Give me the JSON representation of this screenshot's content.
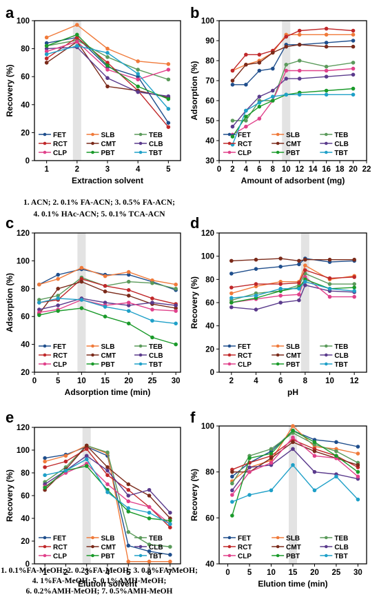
{
  "legend_labels": [
    "FET",
    "SLB",
    "TEB",
    "RCT",
    "CMT",
    "CLB",
    "CLP",
    "PBT",
    "TBT"
  ],
  "series_colors": [
    "#1f4e8c",
    "#f07a3a",
    "#5a9a5a",
    "#c0282a",
    "#7a2a1a",
    "#5a3a8c",
    "#e0408a",
    "#1a9a2a",
    "#1fa0c8"
  ],
  "chart_data": [
    {
      "panel_label": "a",
      "type": "line",
      "xlabel": "Extraction solvent",
      "ylabel": "Recovery (%)",
      "xlim": [
        0.6,
        5.4
      ],
      "ylim": [
        0,
        100
      ],
      "xticks": [
        1,
        2,
        3,
        4,
        5
      ],
      "yticks": [
        0,
        20,
        40,
        60,
        80,
        100
      ],
      "highlight_x": 2,
      "caption": [
        "1. ACN; 2. 0.1% FA-ACN; 3. 0.5% FA-ACN;",
        "4. 0.1% HAc-ACN; 5. 0.1% TCA-ACN"
      ],
      "x": [
        1,
        2,
        3,
        4,
        5
      ],
      "series": [
        {
          "name": "FET",
          "values": [
            84,
            88,
            67,
            60,
            27
          ]
        },
        {
          "name": "SLB",
          "values": [
            88,
            97,
            80,
            71,
            69
          ]
        },
        {
          "name": "TEB",
          "values": [
            82,
            86,
            74,
            65,
            58
          ]
        },
        {
          "name": "RCT",
          "values": [
            73,
            88,
            70,
            50,
            24
          ]
        },
        {
          "name": "CMT",
          "values": [
            70,
            85,
            53,
            50,
            45
          ]
        },
        {
          "name": "CLB",
          "values": [
            80,
            81,
            59,
            49,
            46
          ]
        },
        {
          "name": "CLP",
          "values": [
            78,
            85,
            65,
            58,
            65
          ]
        },
        {
          "name": "PBT",
          "values": [
            82,
            90,
            68,
            53,
            44
          ]
        },
        {
          "name": "TBT",
          "values": [
            76,
            82,
            77,
            62,
            37
          ]
        }
      ]
    },
    {
      "panel_label": "b",
      "type": "line",
      "xlabel": "Amount of adsorbent (mg)",
      "ylabel": "Adsorption (%)",
      "xlim": [
        0,
        22
      ],
      "ylim": [
        30,
        100
      ],
      "xticks": [
        0,
        2,
        4,
        6,
        8,
        10,
        12,
        14,
        16,
        18,
        20,
        22
      ],
      "yticks": [
        30,
        40,
        50,
        60,
        70,
        80,
        90,
        100
      ],
      "highlight_x": 10,
      "x": [
        2,
        4,
        6,
        8,
        10,
        12,
        16,
        20
      ],
      "series": [
        {
          "name": "FET",
          "values": [
            68,
            68,
            75,
            76,
            88,
            88,
            89,
            90
          ]
        },
        {
          "name": "SLB",
          "values": [
            75,
            78,
            80,
            84,
            93,
            93,
            93,
            93
          ]
        },
        {
          "name": "TEB",
          "values": [
            50,
            50,
            60,
            60,
            78,
            80,
            77,
            79
          ]
        },
        {
          "name": "RCT",
          "values": [
            75,
            83,
            83,
            85,
            92,
            95,
            96,
            95
          ]
        },
        {
          "name": "CMT",
          "values": [
            70,
            78,
            79,
            84,
            87,
            88,
            87,
            87
          ]
        },
        {
          "name": "CLB",
          "values": [
            47,
            55,
            62,
            65,
            71,
            71,
            72,
            73
          ]
        },
        {
          "name": "CLP",
          "values": [
            43,
            47,
            51,
            60,
            75,
            75,
            75,
            76
          ]
        },
        {
          "name": "PBT",
          "values": [
            42,
            52,
            57,
            60,
            63,
            64,
            65,
            66
          ]
        },
        {
          "name": "TBT",
          "values": [
            38,
            55,
            59,
            62,
            63,
            63,
            63,
            63
          ]
        }
      ]
    },
    {
      "panel_label": "c",
      "type": "line",
      "xlabel": "Adsorption time (min)",
      "ylabel": "Adsorption (%)",
      "xlim": [
        0,
        31
      ],
      "ylim": [
        20,
        120
      ],
      "xticks": [
        0,
        5,
        10,
        15,
        20,
        25,
        30
      ],
      "yticks": [
        20,
        40,
        60,
        80,
        100,
        120
      ],
      "highlight_x": 10,
      "x": [
        1,
        5,
        10,
        15,
        20,
        25,
        30
      ],
      "series": [
        {
          "name": "FET",
          "values": [
            83,
            90,
            94,
            90,
            90,
            85,
            79
          ]
        },
        {
          "name": "SLB",
          "values": [
            83,
            87,
            95,
            89,
            92,
            86,
            83
          ]
        },
        {
          "name": "TEB",
          "values": [
            72,
            75,
            88,
            82,
            85,
            84,
            80
          ]
        },
        {
          "name": "RCT",
          "values": [
            70,
            72,
            87,
            82,
            79,
            73,
            69
          ]
        },
        {
          "name": "CMT",
          "values": [
            62,
            80,
            85,
            78,
            75,
            69,
            66
          ]
        },
        {
          "name": "CLB",
          "values": [
            65,
            68,
            73,
            70,
            68,
            70,
            68
          ]
        },
        {
          "name": "CLP",
          "values": [
            63,
            65,
            72,
            68,
            70,
            65,
            64
          ]
        },
        {
          "name": "PBT",
          "values": [
            61,
            64,
            66,
            60,
            55,
            45,
            40
          ]
        },
        {
          "name": "TBT",
          "values": [
            70,
            73,
            72,
            67,
            64,
            57,
            55
          ]
        }
      ]
    },
    {
      "panel_label": "d",
      "type": "line",
      "xlabel": "pH",
      "ylabel": "Recovery (%)",
      "xlim": [
        1,
        13
      ],
      "ylim": [
        0,
        120
      ],
      "xticks": [
        2,
        4,
        6,
        8,
        10,
        12
      ],
      "yticks": [
        0,
        20,
        40,
        60,
        80,
        100,
        120
      ],
      "highlight_x": 8,
      "x": [
        2,
        4,
        6,
        7.5,
        8,
        10,
        12
      ],
      "series": [
        {
          "name": "FET",
          "values": [
            85,
            89,
            91,
            93,
            98,
            95,
            96
          ]
        },
        {
          "name": "SLB",
          "values": [
            68,
            74,
            78,
            78,
            92,
            80,
            83
          ]
        },
        {
          "name": "TEB",
          "values": [
            62,
            68,
            70,
            75,
            85,
            76,
            76
          ]
        },
        {
          "name": "RCT",
          "values": [
            73,
            76,
            76,
            77,
            88,
            81,
            82
          ]
        },
        {
          "name": "CMT",
          "values": [
            96,
            97,
            98,
            96,
            97,
            97,
            97
          ]
        },
        {
          "name": "CLB",
          "values": [
            56,
            54,
            60,
            62,
            75,
            70,
            69
          ]
        },
        {
          "name": "CLP",
          "values": [
            60,
            63,
            66,
            67,
            82,
            65,
            65
          ]
        },
        {
          "name": "PBT",
          "values": [
            60,
            64,
            70,
            73,
            80,
            72,
            73
          ]
        },
        {
          "name": "TBT",
          "values": [
            64,
            66,
            72,
            72,
            78,
            72,
            70
          ]
        }
      ]
    },
    {
      "panel_label": "e",
      "type": "line",
      "xlabel": "Elution solvent",
      "ylabel": "Recovery (%)",
      "xlim": [
        0.5,
        7.5
      ],
      "ylim": [
        0,
        120
      ],
      "xticks": [
        1,
        2,
        3,
        4,
        5,
        6,
        7
      ],
      "yticks": [
        0,
        20,
        40,
        60,
        80,
        100,
        120
      ],
      "highlight_x": 3,
      "caption": [
        "1. 0.1%FA-MeOH; 2. 0.2%FA-MeOH; 3. 0.5%FA-MeOH;",
        "4. 1%FA-MeOH; 5. 0.1%AMH-MeOH;",
        "6. 0.2%AMH-MeOH; 7. 0.5%AMH-MeOH"
      ],
      "x": [
        1,
        2,
        3,
        4,
        5,
        6,
        7
      ],
      "series": [
        {
          "name": "FET",
          "values": [
            93,
            96,
            103,
            95,
            16,
            11,
            8
          ]
        },
        {
          "name": "SLB",
          "values": [
            90,
            95,
            104,
            97,
            2,
            2,
            2
          ]
        },
        {
          "name": "TEB",
          "values": [
            72,
            85,
            104,
            98,
            28,
            17,
            15
          ]
        },
        {
          "name": "RCT",
          "values": [
            85,
            90,
            101,
            78,
            65,
            50,
            32
          ]
        },
        {
          "name": "CMT",
          "values": [
            65,
            83,
            104,
            85,
            70,
            60,
            40
          ]
        },
        {
          "name": "CLB",
          "values": [
            70,
            82,
            95,
            82,
            60,
            65,
            45
          ]
        },
        {
          "name": "CLP",
          "values": [
            68,
            80,
            88,
            70,
            55,
            50,
            35
          ]
        },
        {
          "name": "PBT",
          "values": [
            67,
            82,
            86,
            65,
            46,
            40,
            38
          ]
        },
        {
          "name": "TBT",
          "values": [
            78,
            82,
            92,
            63,
            49,
            45,
            35
          ]
        }
      ]
    },
    {
      "panel_label": "f",
      "type": "line",
      "xlabel": "Elution time (min)",
      "ylabel": "Recovery (%)",
      "xlim": [
        -2,
        32
      ],
      "ylim": [
        40,
        100
      ],
      "xticks": [
        0,
        5,
        10,
        15,
        20,
        25,
        30
      ],
      "yticks": [
        40,
        60,
        80,
        100
      ],
      "highlight_x": 15,
      "x": [
        1,
        5,
        10,
        15,
        20,
        25,
        30
      ],
      "series": [
        {
          "name": "FET",
          "values": [
            78,
            84,
            89,
            98,
            94,
            93,
            91
          ]
        },
        {
          "name": "SLB",
          "values": [
            76,
            82,
            85,
            100,
            91,
            90,
            88
          ]
        },
        {
          "name": "TEB",
          "values": [
            75,
            87,
            90,
            97,
            92,
            89,
            84
          ]
        },
        {
          "name": "RCT",
          "values": [
            81,
            84,
            87,
            94,
            90,
            87,
            82
          ]
        },
        {
          "name": "CMT",
          "values": [
            80,
            80,
            86,
            93,
            89,
            86,
            83
          ]
        },
        {
          "name": "CLB",
          "values": [
            72,
            82,
            83,
            90,
            80,
            79,
            77
          ]
        },
        {
          "name": "CLP",
          "values": [
            70,
            80,
            84,
            95,
            87,
            86,
            78
          ]
        },
        {
          "name": "PBT",
          "values": [
            61,
            86,
            88,
            98,
            93,
            87,
            80
          ]
        },
        {
          "name": "TBT",
          "values": [
            67,
            70,
            72,
            83,
            72,
            78,
            68
          ]
        }
      ]
    }
  ]
}
